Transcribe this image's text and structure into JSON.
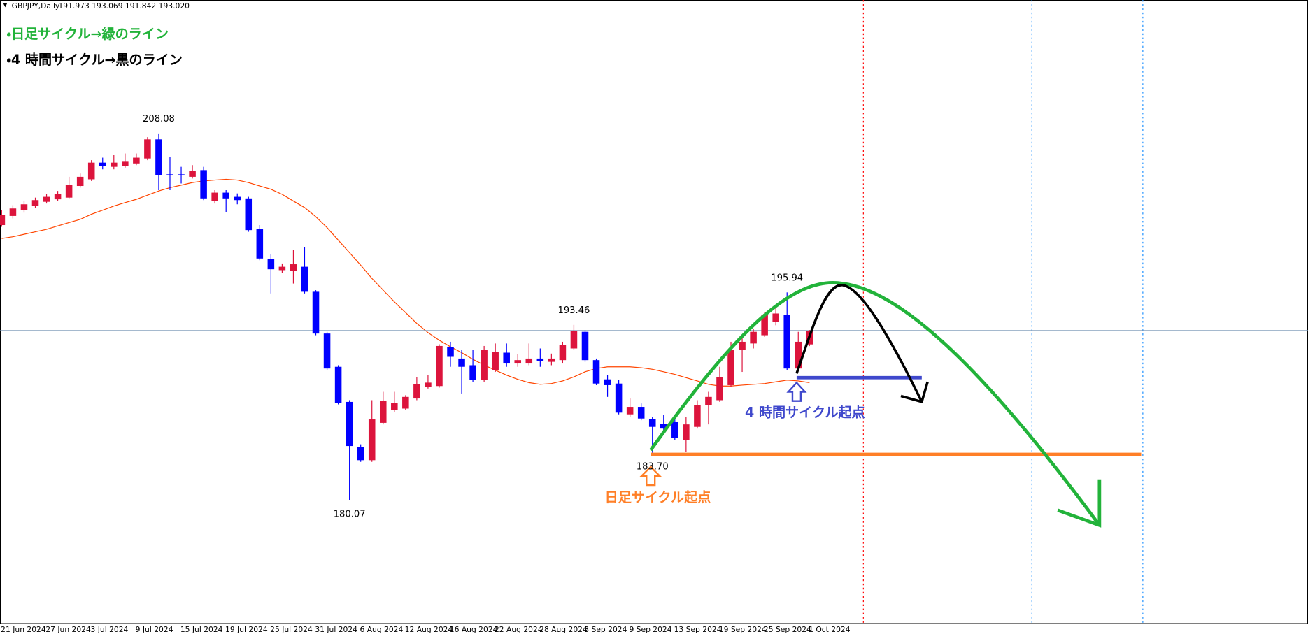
{
  "header": {
    "symbol": "GBPJPY,Daily",
    "ohlc": "191.973 193.069 191.842 193.020"
  },
  "chart_data": {
    "type": "candlestick",
    "categories": [
      "21 Jun 2024",
      null,
      null,
      null,
      "27 Jun 2024",
      null,
      null,
      null,
      "3 Jul 2024",
      null,
      null,
      null,
      "9 Jul 2024",
      null,
      null,
      null,
      "15 Jul 2024",
      null,
      null,
      null,
      "19 Jul 2024",
      null,
      null,
      null,
      "25 Jul 2024",
      null,
      null,
      null,
      "31 Jul 2024",
      null,
      null,
      null,
      "6 Aug 2024",
      null,
      null,
      null,
      "12 Aug 2024",
      null,
      null,
      null,
      "16 Aug 2024",
      null,
      null,
      null,
      "22 Aug 2024",
      null,
      null,
      null,
      "28 Aug 2024",
      null,
      null,
      null,
      "3 Sep 2024",
      null,
      null,
      null,
      "9 Sep 2024",
      null,
      null,
      null,
      "13 Sep 2024",
      null,
      null,
      null,
      "19 Sep 2024",
      null,
      null,
      null,
      "25 Sep 2024",
      null,
      null,
      null,
      "1 Oct 2024"
    ],
    "open": [
      201.08,
      201.78,
      202.22,
      202.54,
      202.86,
      203.05,
      203.18,
      204.07,
      204.58,
      205.85,
      205.53,
      205.6,
      205.79,
      206.17,
      207.63,
      204.96,
      204.96,
      204.77,
      205.28,
      202.92,
      203.56,
      203.24,
      203.12,
      200.76,
      198.47,
      197.64,
      197.58,
      197.9,
      195.99,
      192.8,
      190.26,
      187.58,
      184.15,
      183.13,
      185.98,
      186.94,
      187.07,
      187.84,
      188.73,
      188.79,
      191.78,
      190.89,
      190.38,
      189.24,
      190.0,
      191.34,
      190.51,
      190.51,
      190.89,
      190.64,
      190.77,
      191.66,
      192.93,
      190.77,
      189.3,
      188.98,
      186.63,
      187.2,
      186.25,
      185.92,
      186.05,
      184.66,
      185.67,
      187.33,
      187.71,
      188.86,
      191.53,
      192.04,
      192.67,
      193.69,
      194.2,
      190.13,
      191.97
    ],
    "high": [
      202.22,
      202.6,
      202.92,
      203.18,
      203.43,
      203.69,
      204.77,
      205.02,
      206.04,
      206.23,
      206.42,
      206.55,
      206.55,
      207.8,
      208.08,
      206.3,
      205.53,
      205.66,
      205.53,
      203.75,
      203.75,
      203.5,
      203.24,
      201.08,
      198.85,
      198.15,
      199.17,
      199.42,
      196.11,
      192.93,
      190.38,
      187.71,
      184.34,
      187.71,
      188.35,
      188.35,
      188.09,
      189.49,
      189.62,
      191.98,
      192.17,
      191.53,
      191.53,
      191.85,
      192.04,
      192.04,
      191.21,
      192.04,
      191.66,
      191.27,
      192.17,
      193.46,
      193.06,
      190.89,
      189.62,
      189.24,
      187.84,
      187.46,
      186.44,
      186.57,
      186.31,
      186.44,
      187.71,
      188.35,
      190.26,
      192.17,
      192.55,
      193.18,
      194.46,
      194.97,
      195.94,
      192.93,
      193.07
    ],
    "low": [
      200.95,
      201.59,
      202.03,
      202.41,
      202.73,
      202.92,
      203.12,
      203.94,
      204.45,
      205.34,
      205.34,
      205.47,
      205.66,
      206.04,
      203.75,
      203.75,
      204.26,
      204.64,
      202.99,
      202.73,
      202.09,
      202.67,
      200.57,
      198.4,
      195.86,
      197.45,
      196.62,
      195.86,
      192.67,
      190.0,
      187.39,
      180.07,
      183.0,
      183.0,
      185.86,
      186.82,
      186.94,
      187.71,
      188.6,
      188.67,
      190.26,
      188.22,
      189.11,
      189.11,
      189.87,
      190.26,
      190.26,
      190.38,
      190.26,
      190.38,
      190.51,
      191.53,
      190.64,
      188.86,
      187.96,
      186.63,
      186.44,
      186.18,
      183.7,
      185.16,
      184.66,
      183.77,
      185.54,
      185.86,
      187.58,
      188.73,
      189.87,
      191.66,
      192.55,
      193.43,
      190.0,
      190.0,
      191.84
    ],
    "close": [
      201.84,
      202.35,
      202.67,
      202.99,
      203.24,
      203.43,
      204.13,
      204.77,
      205.85,
      205.6,
      205.85,
      205.92,
      206.23,
      207.63,
      204.9,
      204.9,
      204.9,
      205.21,
      203.12,
      203.56,
      203.12,
      202.99,
      200.7,
      198.53,
      197.71,
      197.9,
      198.09,
      195.99,
      192.8,
      190.13,
      187.52,
      184.21,
      183.13,
      186.24,
      187.65,
      187.52,
      187.96,
      188.92,
      189.05,
      191.85,
      191.02,
      190.26,
      189.24,
      191.53,
      191.4,
      190.51,
      190.77,
      190.89,
      190.7,
      190.89,
      191.91,
      193.0,
      190.77,
      188.98,
      188.86,
      186.76,
      187.2,
      186.31,
      185.67,
      185.54,
      184.85,
      185.86,
      187.33,
      187.96,
      189.49,
      191.53,
      192.17,
      192.93,
      194.2,
      194.33,
      190.13,
      192.17,
      193.02
    ],
    "up_color": "#dc143c",
    "down_color": "#0000ff",
    "moving_average": {
      "color": "#ff4500",
      "values": [
        200.06,
        200.19,
        200.38,
        200.57,
        200.76,
        201.02,
        201.27,
        201.52,
        201.91,
        202.22,
        202.54,
        202.8,
        203.05,
        203.37,
        203.69,
        203.94,
        204.13,
        204.33,
        204.45,
        204.52,
        204.58,
        204.52,
        204.33,
        204.07,
        203.82,
        203.43,
        202.92,
        202.42,
        201.72,
        200.89,
        199.93,
        198.98,
        198.02,
        197.01,
        196.11,
        195.22,
        194.4,
        193.57,
        192.87,
        192.29,
        191.79,
        191.34,
        190.83,
        190.39,
        190.0,
        189.62,
        189.3,
        189.05,
        188.92,
        188.98,
        189.18,
        189.49,
        189.88,
        190.13,
        190.26,
        190.26,
        190.26,
        190.19,
        190.07,
        189.88,
        189.68,
        189.43,
        189.18,
        188.92,
        188.79,
        188.79,
        188.86,
        188.92,
        188.98,
        189.11,
        189.24,
        189.18,
        189.05
      ]
    },
    "bid_line_color": "#6f8fb0",
    "ylim": [
      170.65,
      218.27
    ],
    "price_labels": [
      {
        "value": 208.08,
        "label": "208.08"
      },
      {
        "value": 193.46,
        "label": "193.46"
      },
      {
        "value": 195.94,
        "label": "195.94"
      },
      {
        "value": 180.07,
        "label": "180.07"
      },
      {
        "value": 183.7,
        "label": "183.70"
      }
    ]
  },
  "annotations": {
    "legend_daily": "・日足サイクル→緑のライン",
    "legend_4h": "・4 時間サイクル→黒のライン",
    "start_4h": "4 時間サイクル起点",
    "start_daily": "日足サイクル起点"
  }
}
